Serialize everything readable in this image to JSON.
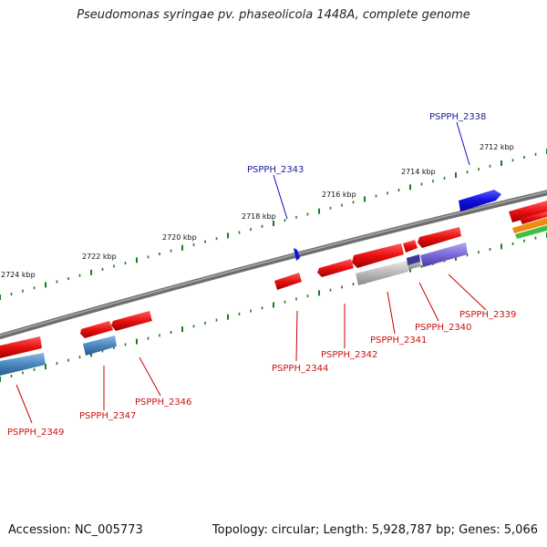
{
  "title": "Pseudomonas syringae pv. phaseolicola 1448A, complete genome",
  "footer": {
    "accession": "Accession: NC_005773",
    "summary": "Topology: circular; Length: 5,928,787 bp; Genes: 5,066"
  },
  "scale_labels": [
    "2712 kbp",
    "2714 kbp",
    "2716 kbp",
    "2718 kbp",
    "2720 kbp",
    "2722 kbp",
    "2724 kbp"
  ],
  "gene_labels": {
    "PSPPH_2338": "PSPPH_2338",
    "PSPPH_2339": "PSPPH_2339",
    "PSPPH_2340": "PSPPH_2340",
    "PSPPH_2341": "PSPPH_2341",
    "PSPPH_2342": "PSPPH_2342",
    "PSPPH_2343": "PSPPH_2343",
    "PSPPH_2344": "PSPPH_2344",
    "PSPPH_2346": "PSPPH_2346",
    "PSPPH_2347": "PSPPH_2347",
    "PSPPH_2349": "PSPPH_2349"
  },
  "colors": {
    "backbone": "#7f7f7f",
    "tick": "#1e7a1e",
    "gene_red": "#e81010",
    "gene_blue": "#1010e0",
    "gene_steel": "#4a88c0",
    "gene_grey": "#b8b8b8",
    "gene_purple": "#7a6ad8",
    "gene_orange": "#f08a10",
    "gene_green": "#40c040"
  }
}
